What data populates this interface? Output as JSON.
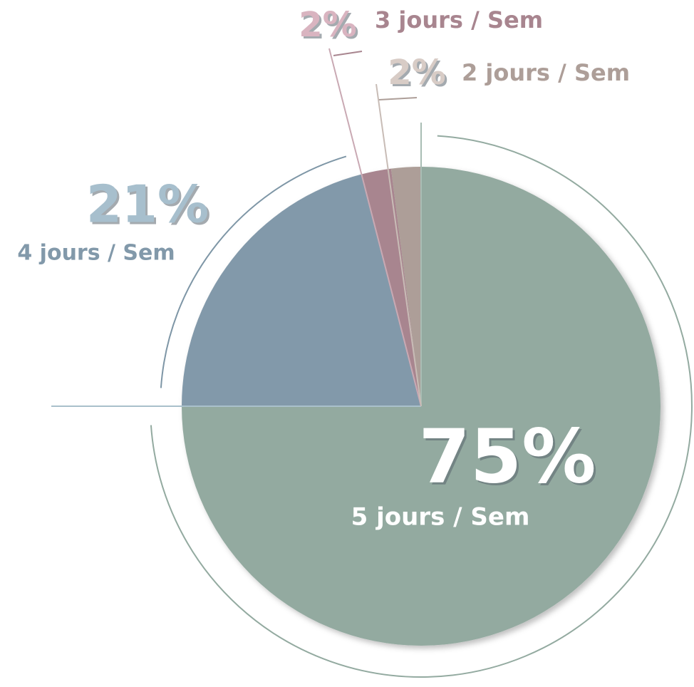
{
  "chart_data": {
    "type": "pie",
    "categories": [
      "5 jours / Sem",
      "4 jours / Sem",
      "3 jours / Sem",
      "2 jours / Sem"
    ],
    "values": [
      75,
      21,
      2,
      2
    ],
    "value_labels": [
      "75%",
      "21%",
      "2%",
      "2%"
    ],
    "colors": [
      "#93aaa0",
      "#8299aa",
      "#a8858f",
      "#ad9e98"
    ]
  }
}
